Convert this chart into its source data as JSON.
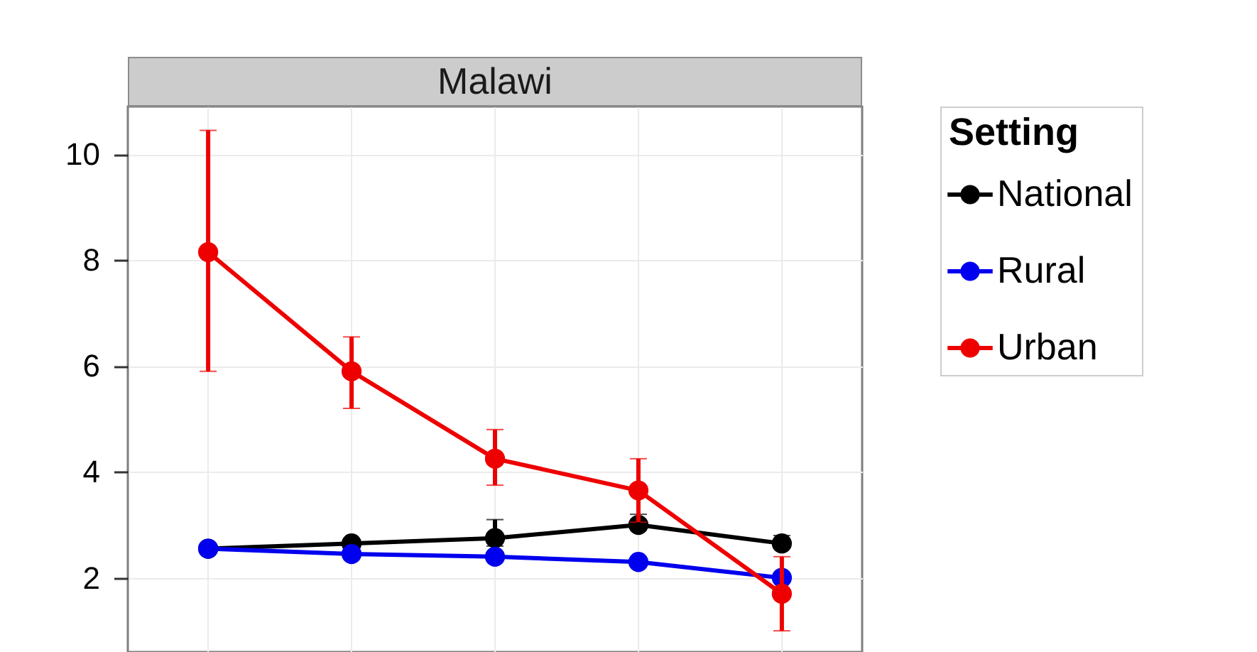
{
  "chart_data": {
    "type": "line",
    "title": "Malawi",
    "legend_title": "Setting",
    "categories": [
      null,
      null,
      null,
      null,
      null
    ],
    "series": [
      {
        "name": "National",
        "color": "#000000",
        "values": [
          2.55,
          2.65,
          2.75,
          3.0,
          2.65
        ],
        "errors": [
          null,
          null,
          [
            2.6,
            3.1
          ],
          [
            3.0,
            3.2
          ],
          [
            2.65,
            2.8
          ]
        ]
      },
      {
        "name": "Rural",
        "color": "#0000ee",
        "values": [
          2.55,
          2.45,
          2.4,
          2.3,
          2.0
        ]
      },
      {
        "name": "Urban",
        "color": "#ee0000",
        "values": [
          8.15,
          5.9,
          4.25,
          3.65,
          1.7
        ],
        "errors": [
          [
            5.9,
            10.45
          ],
          [
            5.2,
            6.55
          ],
          [
            3.75,
            4.8
          ],
          [
            3.05,
            4.25
          ],
          [
            1.0,
            2.4
          ]
        ]
      }
    ],
    "ylim": [
      0.6,
      10.9
    ],
    "yticks": [
      2,
      4,
      6,
      8,
      10
    ],
    "grid": true,
    "legend": "right",
    "marker": "circle",
    "tick_labels": "y"
  }
}
